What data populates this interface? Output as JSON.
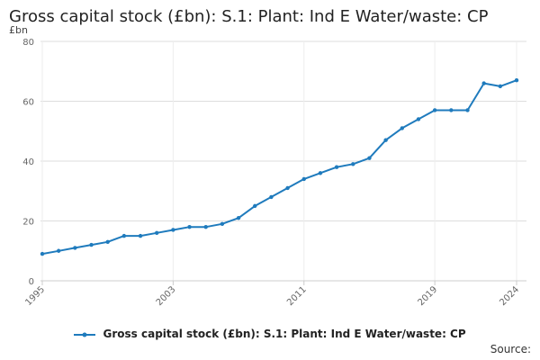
{
  "chart_data": {
    "type": "line",
    "title": "Gross capital stock (£bn): S.1: Plant: Ind E Water/waste: CP",
    "ylabel": "£bn",
    "xlabel": "",
    "ylim": [
      0,
      80
    ],
    "yticks": [
      0,
      20,
      40,
      60,
      80
    ],
    "xlim": [
      1995,
      2024
    ],
    "xticks": [
      1995,
      2003,
      2011,
      2019,
      2024
    ],
    "grid": true,
    "legend_position": "bottom",
    "series": [
      {
        "name": "Gross capital stock (£bn): S.1: Plant: Ind E Water/waste: CP",
        "color": "#1f7bbd",
        "x": [
          1995,
          1996,
          1997,
          1998,
          1999,
          2000,
          2001,
          2002,
          2003,
          2004,
          2005,
          2006,
          2007,
          2008,
          2009,
          2010,
          2011,
          2012,
          2013,
          2014,
          2015,
          2016,
          2017,
          2018,
          2019,
          2020,
          2021,
          2022,
          2023,
          2024
        ],
        "values": [
          9,
          10,
          11,
          12,
          13,
          15,
          15,
          16,
          17,
          18,
          18,
          19,
          21,
          25,
          28,
          31,
          34,
          36,
          38,
          39,
          41,
          47,
          51,
          54,
          57,
          57,
          57,
          66,
          65,
          67
        ]
      }
    ]
  },
  "legend_label": "Gross capital stock (£bn): S.1: Plant: Ind E Water/waste: CP",
  "source_label": "Source:",
  "colors": {
    "line": "#1f7bbd",
    "grid": "#dddddd",
    "axis": "#cccccc"
  }
}
